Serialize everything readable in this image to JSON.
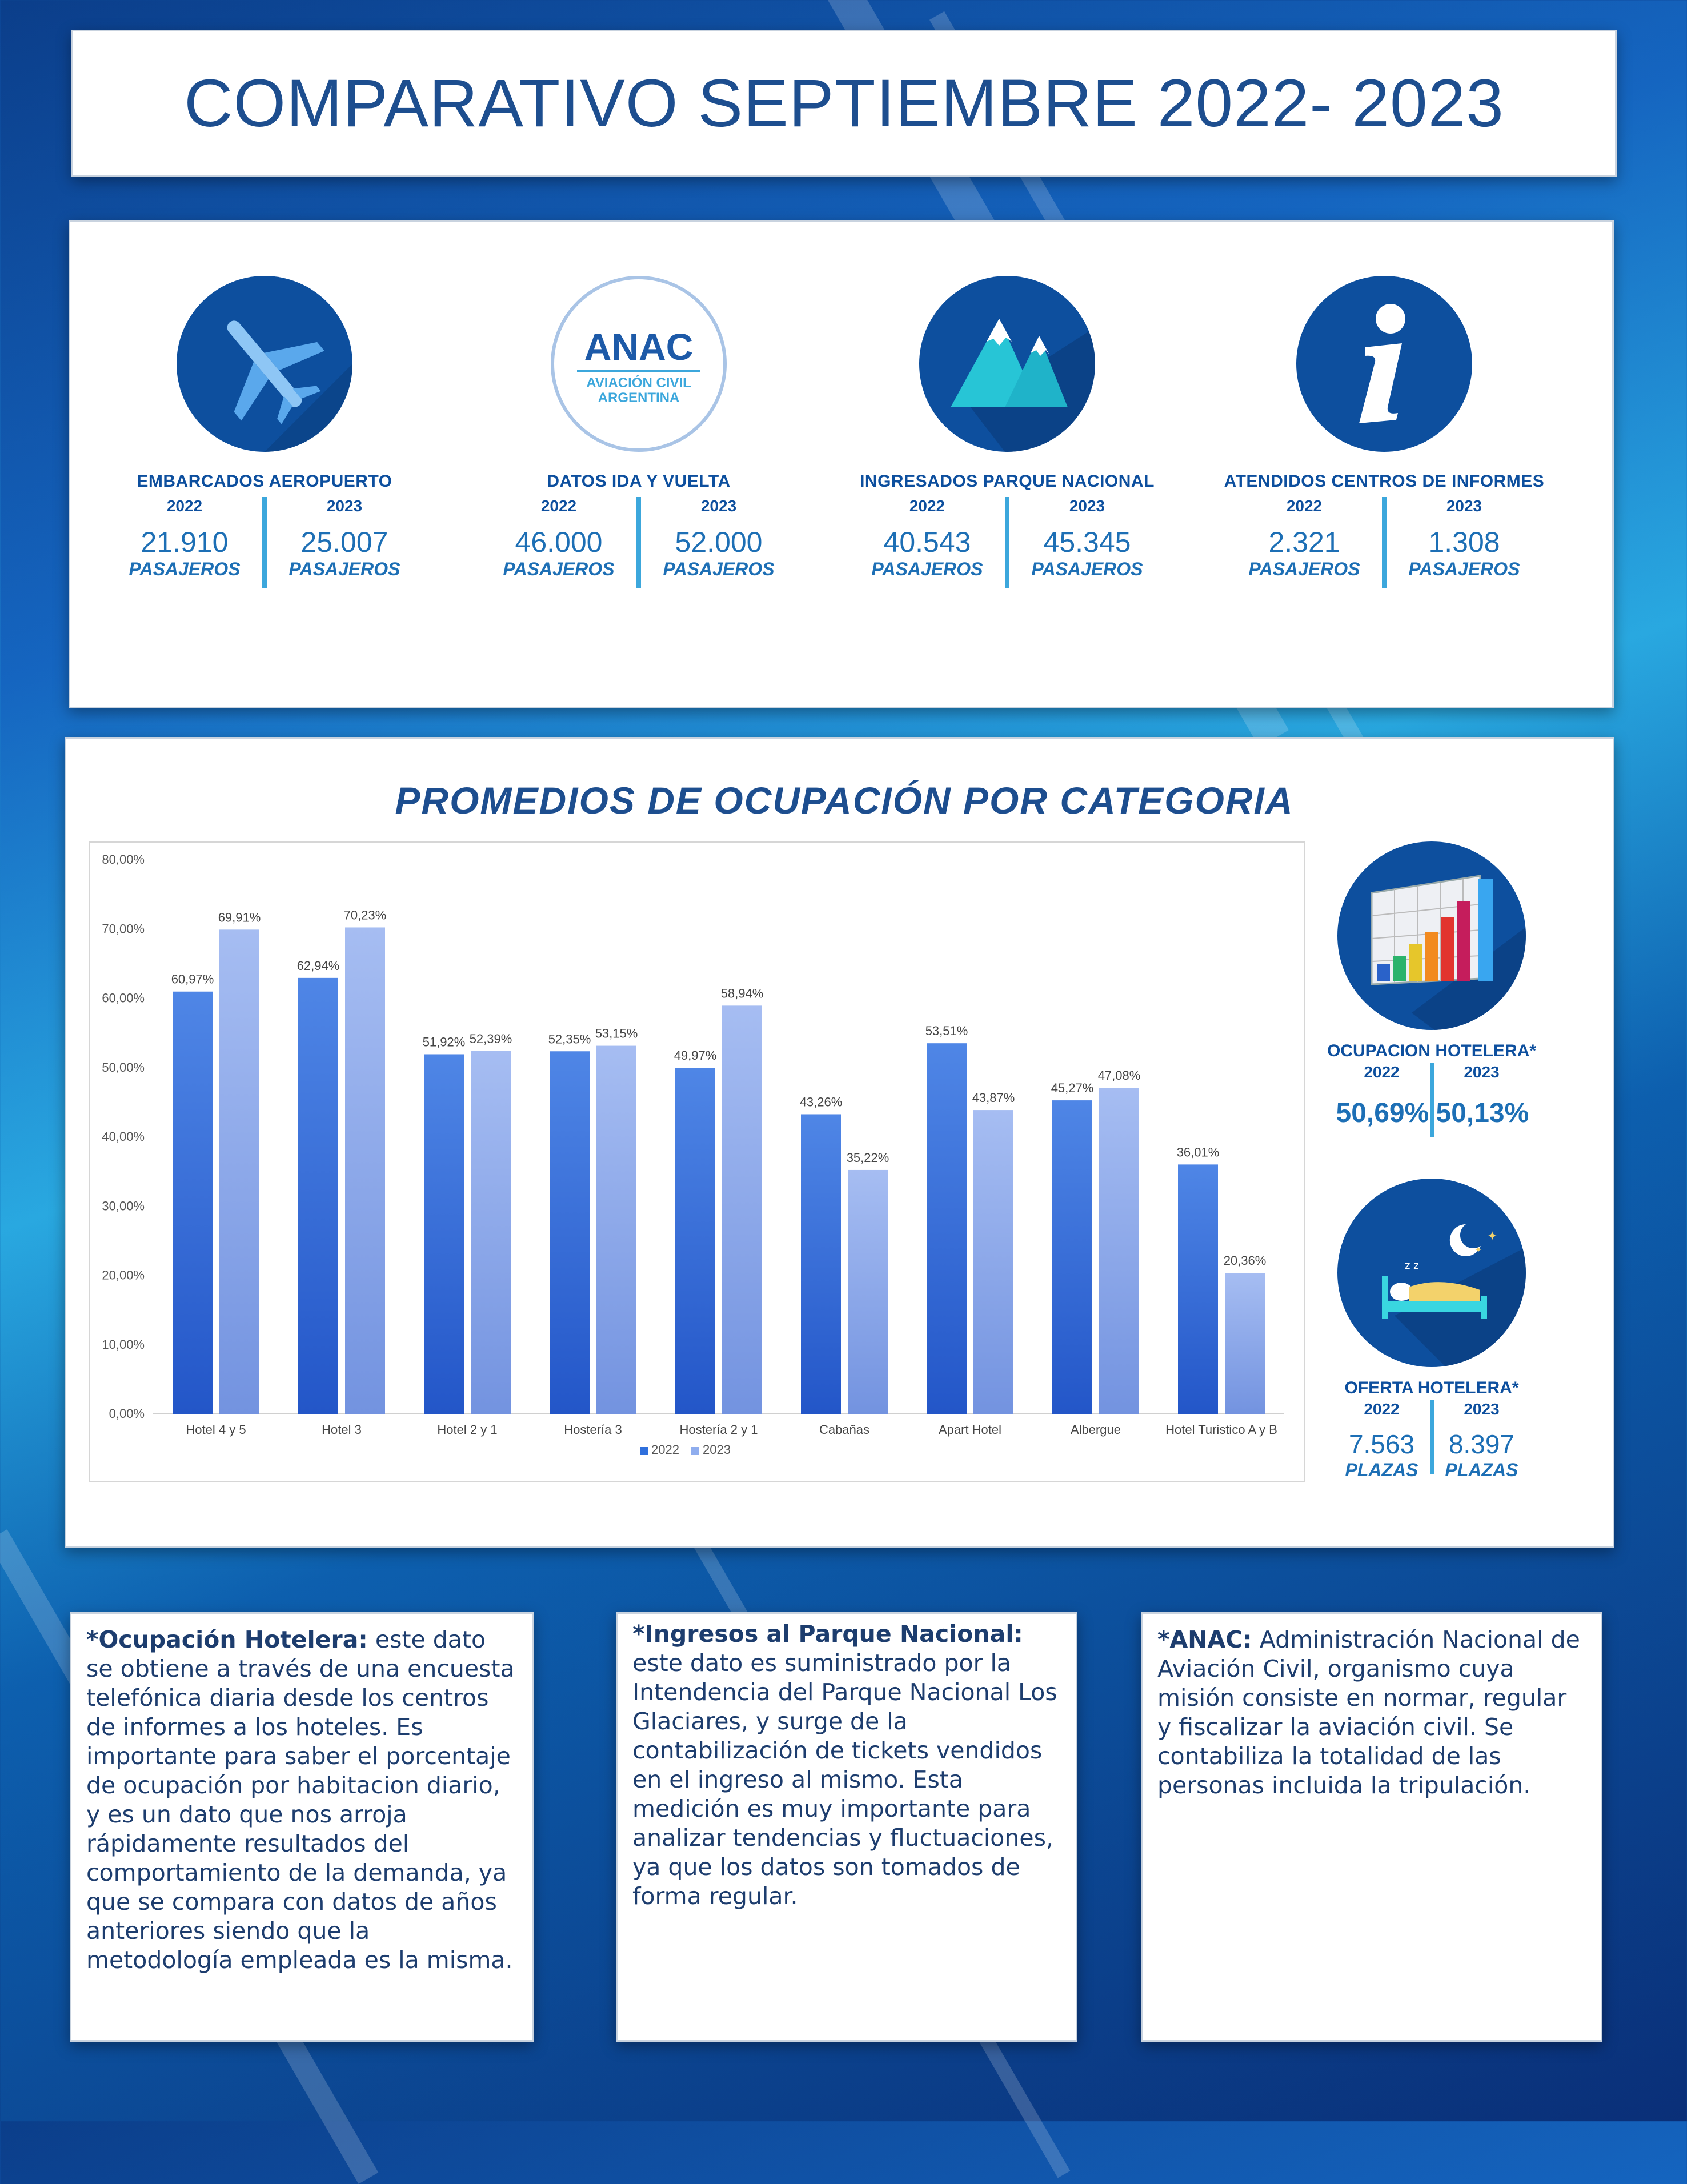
{
  "title": "COMPARATIVO SEPTIEMBRE 2022- 2023",
  "stats": [
    {
      "icon": "airplane-icon",
      "label": "EMBARCADOS AEROPUERTO",
      "year_a": "2022",
      "year_b": "2023",
      "value_a": "21.910",
      "value_b": "25.007",
      "unit": "PASAJEROS"
    },
    {
      "icon": "anac-logo",
      "logo_name": "ANAC",
      "logo_sub1": "AVIACIÓN CIVIL",
      "logo_sub2": "ARGENTINA",
      "label": "DATOS IDA Y VUELTA",
      "year_a": "2022",
      "year_b": "2023",
      "value_a": "46.000",
      "value_b": "52.000",
      "unit": "PASAJEROS"
    },
    {
      "icon": "mountains-icon",
      "label": "INGRESADOS PARQUE NACIONAL",
      "year_a": "2022",
      "year_b": "2023",
      "value_a": "40.543",
      "value_b": "45.345",
      "unit": "PASAJEROS"
    },
    {
      "icon": "info-icon",
      "label": "ATENDIDOS CENTROS DE INFORMES",
      "year_a": "2022",
      "year_b": "2023",
      "value_a": "2.321",
      "value_b": "1.308",
      "unit": "PASAJEROS"
    }
  ],
  "chart_title": "PROMEDIOS DE OCUPACIÓN POR CATEGORIA",
  "chart_data": {
    "type": "bar",
    "categories": [
      "Hotel 4 y 5",
      "Hotel 3",
      "Hotel 2 y 1",
      "Hostería 3",
      "Hostería 2 y 1",
      "Cabañas",
      "Apart Hotel",
      "Albergue",
      "Hotel Turistico A y B"
    ],
    "series": [
      {
        "name": "2022",
        "values": [
          60.97,
          62.94,
          51.92,
          52.35,
          49.97,
          43.26,
          53.51,
          45.27,
          36.01
        ],
        "labels": [
          "60,97%",
          "62,94%",
          "51,92%",
          "52,35%",
          "49,97%",
          "43,26%",
          "53,51%",
          "45,27%",
          "36,01%"
        ],
        "color": "#2f6fdc"
      },
      {
        "name": "2023",
        "values": [
          69.91,
          70.23,
          52.39,
          53.15,
          58.94,
          35.22,
          43.87,
          47.08,
          20.36
        ],
        "labels": [
          "69,91%",
          "70,23%",
          "52,39%",
          "53,15%",
          "58,94%",
          "35,22%",
          "43,87%",
          "47,08%",
          "20,36%"
        ],
        "color": "#8fadee"
      }
    ],
    "ylim": [
      0,
      80
    ],
    "yticks": [
      "0,00%",
      "10,00%",
      "20,00%",
      "30,00%",
      "40,00%",
      "50,00%",
      "60,00%",
      "70,00%",
      "80,00%"
    ],
    "legend": "bottom",
    "grid": false
  },
  "occupancy": {
    "icon": "bar-chart-icon",
    "label": "OCUPACION HOTELERA*",
    "year_a": "2022",
    "year_b": "2023",
    "value_a": "50,69%",
    "value_b": "50,13%"
  },
  "supply": {
    "icon": "bed-night-icon",
    "label": "OFERTA HOTELERA*",
    "year_a": "2022",
    "year_b": "2023",
    "value_a": "7.563",
    "value_b": "8.397",
    "unit": "PLAZAS"
  },
  "notes": [
    {
      "head": "*Ocupación Hotelera:",
      "text": " este dato se obtiene a través de una encuesta telefónica diaria desde los centros de informes a los hoteles. Es importante para saber el porcentaje de ocupación por habitacion diario, y es un dato que nos arroja rápidamente resultados del comportamiento de la demanda, ya que se compara con datos de años anteriores siendo que la metodología empleada es la misma."
    },
    {
      "head": "*Ingresos al Parque Nacional:",
      "text": " este dato es suministrado por la Intendencia del Parque Nacional Los Glaciares, y surge de la contabilización de tickets vendidos en el ingreso al mismo. Esta medición es muy importante para analizar tendencias y fluctuaciones, ya que los datos son tomados de forma regular."
    },
    {
      "head": "*ANAC:",
      "text": " Administración Nacional de Aviación Civil, organismo cuya misión consiste en normar, regular y fiscalizar la aviación civil. Se contabiliza la totalidad de las personas incluida la tripulación."
    }
  ]
}
